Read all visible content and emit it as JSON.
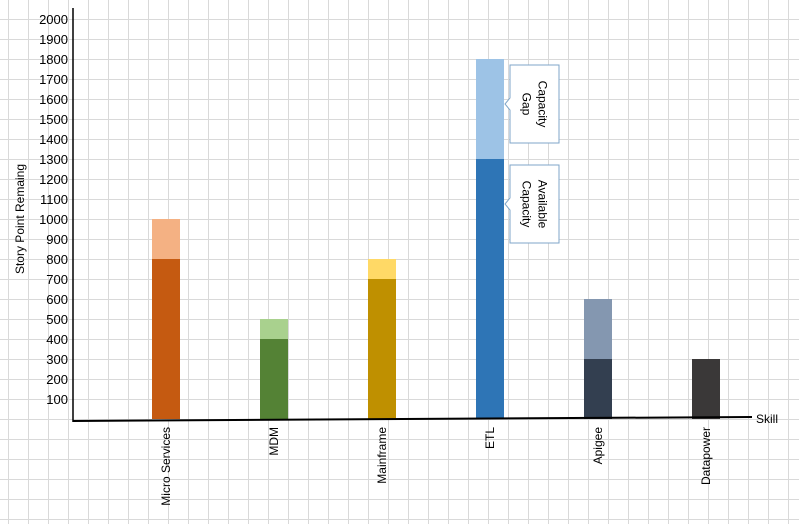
{
  "chart_data": {
    "type": "bar",
    "stacked": true,
    "categories": [
      "Micro Services",
      "MDM",
      "Mainframe",
      "ETL",
      "Apigee",
      "Datapower"
    ],
    "series": [
      {
        "values": [
          800,
          400,
          700,
          1300,
          300,
          300
        ],
        "colors": [
          "#c55a11",
          "#548235",
          "#bf9000",
          "#2e75b6",
          "#333f50",
          "#3a3838"
        ]
      },
      {
        "values": [
          200,
          100,
          100,
          500,
          300,
          0
        ],
        "colors": [
          "#f4b183",
          "#a9d18e",
          "#ffd966",
          "#9dc3e6",
          "#8497b0",
          "#3a3838"
        ]
      }
    ],
    "xlabel": "Skill",
    "ylabel": "Story Point Remaing",
    "ylim": [
      0,
      2000
    ],
    "ytick_step": 100,
    "yticks": [
      "100",
      "200",
      "300",
      "400",
      "500",
      "600",
      "700",
      "800",
      "900",
      "1000",
      "1100",
      "1200",
      "1300",
      "1400",
      "1500",
      "1600",
      "1700",
      "1800",
      "1900",
      "2000"
    ],
    "grid": true,
    "annotations": [
      {
        "text": [
          "Capacity",
          "Gap"
        ],
        "category": "ETL",
        "series": 1
      },
      {
        "text": [
          "Available",
          "Capacity"
        ],
        "category": "ETL",
        "series": 0
      }
    ]
  }
}
